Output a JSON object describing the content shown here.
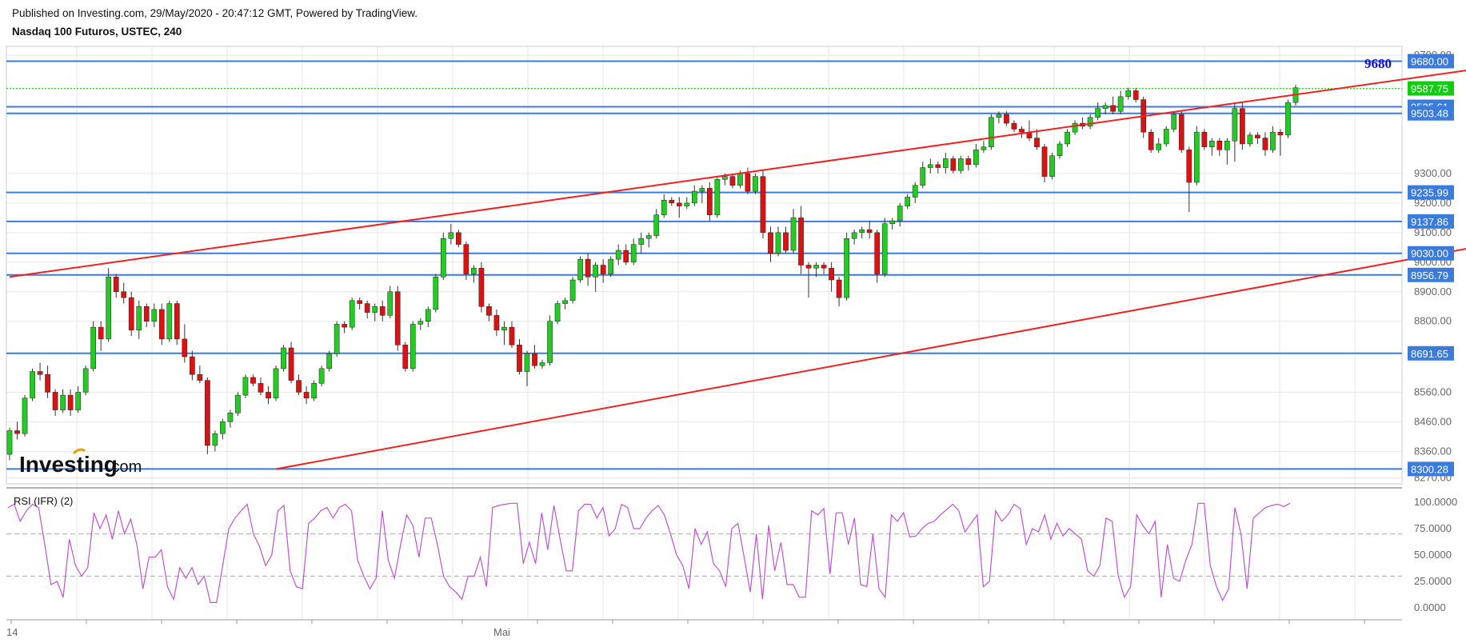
{
  "header": {
    "published": "Published on Investing.com, 29/May/2020 - 20:47:12 GMT, Powered by TradingView.",
    "instrument": "Nasdaq 100 Futuros, USTEC, 240"
  },
  "logo": {
    "main": "Investing",
    "suffix": ".com"
  },
  "colors": {
    "up": "#22cc22",
    "down": "#dd1111",
    "level": "#3a7bdc",
    "channel": "#ee2222",
    "rsi": "#bb55cc",
    "last": "#11cc11",
    "grid": "#e6e6e6",
    "annotation": "#1010cc"
  },
  "chart_data": [
    {
      "type": "candlestick",
      "title": "Nasdaq 100 Futuros, USTEC, 240",
      "x_labels": [
        "14",
        "Mai"
      ],
      "y_ticks": [
        8270,
        8360,
        8460,
        8560,
        8800,
        8900,
        9000,
        9100,
        9200,
        9300,
        9700
      ],
      "ylim": [
        8250,
        9730
      ],
      "annotation": "9680",
      "last_price": {
        "value": 9587.75,
        "label": "9587.75"
      },
      "levels": [
        {
          "value": 9680.0,
          "label": "9680.00"
        },
        {
          "value": 9525.61,
          "label": "9525.61"
        },
        {
          "value": 9503.48,
          "label": "9503.48"
        },
        {
          "value": 9235.99,
          "label": "9235.99"
        },
        {
          "value": 9137.86,
          "label": "9137.86"
        },
        {
          "value": 9030.0,
          "label": "9030.00"
        },
        {
          "value": 8956.79,
          "label": "8956.79"
        },
        {
          "value": 8691.65,
          "label": "8691.65"
        },
        {
          "value": 8300.28,
          "label": "8300.28"
        }
      ],
      "channel": {
        "upper": [
          [
            0,
            8950
          ],
          [
            200,
            9680
          ]
        ],
        "lower": [
          [
            35,
            8300
          ],
          [
            205,
            9110
          ]
        ]
      },
      "candles": [
        [
          8350,
          8440,
          8330,
          8430
        ],
        [
          8430,
          8460,
          8400,
          8420
        ],
        [
          8420,
          8550,
          8410,
          8540
        ],
        [
          8540,
          8640,
          8530,
          8630
        ],
        [
          8630,
          8660,
          8600,
          8620
        ],
        [
          8620,
          8650,
          8540,
          8560
        ],
        [
          8560,
          8570,
          8480,
          8500
        ],
        [
          8500,
          8570,
          8490,
          8550
        ],
        [
          8550,
          8570,
          8480,
          8500
        ],
        [
          8500,
          8580,
          8490,
          8560
        ],
        [
          8560,
          8650,
          8550,
          8640
        ],
        [
          8640,
          8800,
          8630,
          8780
        ],
        [
          8780,
          8800,
          8700,
          8740
        ],
        [
          8740,
          8980,
          8730,
          8950
        ],
        [
          8950,
          8960,
          8880,
          8900
        ],
        [
          8900,
          8930,
          8860,
          8880
        ],
        [
          8880,
          8900,
          8750,
          8770
        ],
        [
          8770,
          8870,
          8740,
          8850
        ],
        [
          8850,
          8860,
          8780,
          8800
        ],
        [
          8800,
          8860,
          8780,
          8840
        ],
        [
          8840,
          8860,
          8720,
          8740
        ],
        [
          8740,
          8870,
          8730,
          8860
        ],
        [
          8860,
          8870,
          8720,
          8740
        ],
        [
          8740,
          8790,
          8660,
          8680
        ],
        [
          8680,
          8700,
          8600,
          8620
        ],
        [
          8620,
          8650,
          8590,
          8600
        ],
        [
          8600,
          8610,
          8350,
          8380
        ],
        [
          8380,
          8430,
          8360,
          8420
        ],
        [
          8420,
          8470,
          8400,
          8460
        ],
        [
          8460,
          8500,
          8440,
          8490
        ],
        [
          8490,
          8560,
          8480,
          8550
        ],
        [
          8550,
          8620,
          8540,
          8610
        ],
        [
          8610,
          8620,
          8580,
          8590
        ],
        [
          8590,
          8610,
          8550,
          8560
        ],
        [
          8560,
          8580,
          8520,
          8540
        ],
        [
          8540,
          8650,
          8530,
          8640
        ],
        [
          8640,
          8720,
          8630,
          8710
        ],
        [
          8710,
          8730,
          8590,
          8600
        ],
        [
          8600,
          8620,
          8550,
          8560
        ],
        [
          8560,
          8580,
          8520,
          8540
        ],
        [
          8540,
          8600,
          8530,
          8590
        ],
        [
          8590,
          8650,
          8580,
          8640
        ],
        [
          8640,
          8700,
          8630,
          8690
        ],
        [
          8690,
          8800,
          8680,
          8790
        ],
        [
          8790,
          8800,
          8760,
          8780
        ],
        [
          8780,
          8880,
          8770,
          8870
        ],
        [
          8870,
          8880,
          8840,
          8860
        ],
        [
          8860,
          8870,
          8810,
          8830
        ],
        [
          8830,
          8860,
          8800,
          8850
        ],
        [
          8850,
          8870,
          8800,
          8820
        ],
        [
          8820,
          8920,
          8810,
          8900
        ],
        [
          8900,
          8920,
          8700,
          8720
        ],
        [
          8720,
          8730,
          8630,
          8640
        ],
        [
          8640,
          8800,
          8630,
          8790
        ],
        [
          8790,
          8810,
          8770,
          8800
        ],
        [
          8800,
          8850,
          8780,
          8840
        ],
        [
          8840,
          8960,
          8830,
          8950
        ],
        [
          8950,
          9100,
          8940,
          9080
        ],
        [
          9080,
          9130,
          9060,
          9100
        ],
        [
          9100,
          9110,
          9050,
          9060
        ],
        [
          9060,
          9070,
          8940,
          8960
        ],
        [
          8960,
          8990,
          8930,
          8980
        ],
        [
          8980,
          9000,
          8830,
          8850
        ],
        [
          8850,
          8860,
          8800,
          8820
        ],
        [
          8820,
          8840,
          8750,
          8770
        ],
        [
          8770,
          8800,
          8720,
          8780
        ],
        [
          8780,
          8800,
          8710,
          8720
        ],
        [
          8720,
          8740,
          8620,
          8630
        ],
        [
          8630,
          8700,
          8580,
          8690
        ],
        [
          8690,
          8720,
          8640,
          8650
        ],
        [
          8650,
          8670,
          8640,
          8660
        ],
        [
          8660,
          8820,
          8650,
          8800
        ],
        [
          8800,
          8870,
          8790,
          8860
        ],
        [
          8860,
          8880,
          8840,
          8870
        ],
        [
          8870,
          8950,
          8860,
          8940
        ],
        [
          8940,
          9020,
          8930,
          9010
        ],
        [
          9010,
          9030,
          8920,
          8950
        ],
        [
          8950,
          9000,
          8900,
          8990
        ],
        [
          8990,
          9010,
          8930,
          8960
        ],
        [
          8960,
          9020,
          8950,
          9010
        ],
        [
          9010,
          9060,
          8990,
          9040
        ],
        [
          9040,
          9060,
          8990,
          9000
        ],
        [
          9000,
          9080,
          8990,
          9060
        ],
        [
          9060,
          9100,
          9030,
          9080
        ],
        [
          9080,
          9100,
          9050,
          9090
        ],
        [
          9090,
          9180,
          9080,
          9160
        ],
        [
          9160,
          9230,
          9150,
          9210
        ],
        [
          9210,
          9220,
          9190,
          9200
        ],
        [
          9200,
          9220,
          9150,
          9190
        ],
        [
          9190,
          9220,
          9180,
          9200
        ],
        [
          9200,
          9260,
          9190,
          9240
        ],
        [
          9240,
          9260,
          9200,
          9250
        ],
        [
          9250,
          9270,
          9140,
          9160
        ],
        [
          9160,
          9290,
          9150,
          9280
        ],
        [
          9280,
          9300,
          9260,
          9290
        ],
        [
          9290,
          9300,
          9250,
          9260
        ],
        [
          9260,
          9310,
          9250,
          9300
        ],
        [
          9300,
          9320,
          9230,
          9240
        ],
        [
          9240,
          9300,
          9230,
          9290
        ],
        [
          9290,
          9310,
          9080,
          9100
        ],
        [
          9100,
          9120,
          9000,
          9030
        ],
        [
          9030,
          9120,
          9020,
          9100
        ],
        [
          9100,
          9120,
          9030,
          9040
        ],
        [
          9040,
          9180,
          9030,
          9150
        ],
        [
          9150,
          9190,
          8960,
          8990
        ],
        [
          8990,
          9000,
          8880,
          8980
        ],
        [
          8980,
          9000,
          8950,
          8990
        ],
        [
          8990,
          9000,
          8960,
          8980
        ],
        [
          8980,
          9000,
          8900,
          8940
        ],
        [
          8940,
          8950,
          8850,
          8880
        ],
        [
          8880,
          9100,
          8870,
          9080
        ],
        [
          9080,
          9110,
          9060,
          9100
        ],
        [
          9100,
          9120,
          9080,
          9110
        ],
        [
          9110,
          9140,
          9080,
          9100
        ],
        [
          9100,
          9110,
          8930,
          8960
        ],
        [
          8960,
          9150,
          8950,
          9130
        ],
        [
          9130,
          9150,
          9110,
          9140
        ],
        [
          9140,
          9200,
          9120,
          9190
        ],
        [
          9190,
          9230,
          9180,
          9220
        ],
        [
          9220,
          9270,
          9200,
          9260
        ],
        [
          9260,
          9340,
          9250,
          9320
        ],
        [
          9320,
          9350,
          9300,
          9330
        ],
        [
          9330,
          9340,
          9300,
          9320
        ],
        [
          9320,
          9370,
          9300,
          9350
        ],
        [
          9350,
          9360,
          9300,
          9310
        ],
        [
          9310,
          9360,
          9300,
          9350
        ],
        [
          9350,
          9360,
          9310,
          9330
        ],
        [
          9330,
          9400,
          9320,
          9380
        ],
        [
          9380,
          9410,
          9370,
          9390
        ],
        [
          9390,
          9500,
          9380,
          9490
        ],
        [
          9490,
          9510,
          9470,
          9500
        ],
        [
          9500,
          9510,
          9460,
          9470
        ],
        [
          9470,
          9480,
          9440,
          9450
        ],
        [
          9450,
          9460,
          9420,
          9440
        ],
        [
          9440,
          9480,
          9410,
          9420
        ],
        [
          9420,
          9450,
          9380,
          9390
        ],
        [
          9390,
          9400,
          9270,
          9290
        ],
        [
          9290,
          9370,
          9280,
          9360
        ],
        [
          9360,
          9410,
          9350,
          9400
        ],
        [
          9400,
          9450,
          9390,
          9440
        ],
        [
          9440,
          9480,
          9430,
          9470
        ],
        [
          9470,
          9490,
          9450,
          9460
        ],
        [
          9460,
          9500,
          9450,
          9490
        ],
        [
          9490,
          9540,
          9480,
          9520
        ],
        [
          9520,
          9540,
          9500,
          9530
        ],
        [
          9530,
          9560,
          9500,
          9510
        ],
        [
          9510,
          9580,
          9500,
          9560
        ],
        [
          9560,
          9590,
          9550,
          9580
        ],
        [
          9580,
          9590,
          9540,
          9550
        ],
        [
          9550,
          9560,
          9420,
          9440
        ],
        [
          9440,
          9450,
          9370,
          9380
        ],
        [
          9380,
          9420,
          9370,
          9400
        ],
        [
          9400,
          9460,
          9390,
          9450
        ],
        [
          9450,
          9510,
          9440,
          9500
        ],
        [
          9500,
          9510,
          9370,
          9380
        ],
        [
          9380,
          9390,
          9170,
          9270
        ],
        [
          9270,
          9460,
          9260,
          9440
        ],
        [
          9440,
          9450,
          9380,
          9390
        ],
        [
          9390,
          9420,
          9360,
          9410
        ],
        [
          9410,
          9420,
          9360,
          9380
        ],
        [
          9380,
          9420,
          9330,
          9410
        ],
        [
          9410,
          9540,
          9340,
          9520
        ],
        [
          9520,
          9540,
          9380,
          9400
        ],
        [
          9400,
          9440,
          9390,
          9430
        ],
        [
          9430,
          9440,
          9400,
          9420
        ],
        [
          9420,
          9440,
          9360,
          9380
        ],
        [
          9380,
          9460,
          9370,
          9440
        ],
        [
          9440,
          9450,
          9360,
          9430
        ],
        [
          9430,
          9550,
          9420,
          9540
        ],
        [
          9540,
          9600,
          9530,
          9590
        ]
      ]
    },
    {
      "type": "line",
      "title": "RSI (IFR) (2)",
      "y_ticks": [
        "100.0000",
        "75.0000",
        "50.0000",
        "25.0000",
        "0.0000"
      ],
      "ylim": [
        0,
        100
      ],
      "reference_lines": [
        70,
        30
      ],
      "values": [
        95,
        98,
        82,
        92,
        98,
        95,
        60,
        22,
        25,
        10,
        65,
        40,
        30,
        38,
        90,
        75,
        88,
        65,
        92,
        70,
        84,
        60,
        18,
        48,
        48,
        55,
        20,
        8,
        38,
        28,
        38,
        22,
        30,
        5,
        5,
        40,
        75,
        85,
        92,
        98,
        70,
        58,
        40,
        50,
        92,
        97,
        35,
        20,
        18,
        80,
        85,
        92,
        95,
        85,
        95,
        98,
        92,
        45,
        30,
        18,
        28,
        92,
        45,
        28,
        60,
        88,
        78,
        48,
        85,
        85,
        60,
        30,
        20,
        15,
        8,
        30,
        30,
        48,
        20,
        95,
        97,
        98,
        99,
        99,
        42,
        62,
        42,
        90,
        55,
        97,
        65,
        35,
        35,
        92,
        98,
        98,
        85,
        95,
        68,
        75,
        98,
        95,
        75,
        75,
        85,
        92,
        97,
        88,
        70,
        50,
        40,
        18,
        75,
        60,
        72,
        42,
        35,
        20,
        75,
        80,
        48,
        15,
        70,
        8,
        78,
        35,
        62,
        22,
        22,
        10,
        10,
        92,
        88,
        94,
        32,
        90,
        90,
        60,
        85,
        22,
        20,
        70,
        18,
        10,
        88,
        82,
        90,
        67,
        68,
        75,
        80,
        82,
        88,
        93,
        98,
        92,
        72,
        80,
        88,
        20,
        25,
        92,
        82,
        88,
        98,
        94,
        60,
        75,
        72,
        88,
        65,
        80,
        68,
        75,
        70,
        65,
        35,
        30,
        40,
        85,
        82,
        30,
        10,
        20,
        88,
        78,
        70,
        82,
        10,
        60,
        28,
        25,
        45,
        60,
        99,
        99,
        40,
        20,
        7,
        18,
        95,
        70,
        18,
        85,
        90,
        95,
        97,
        98,
        96,
        99
      ]
    }
  ]
}
